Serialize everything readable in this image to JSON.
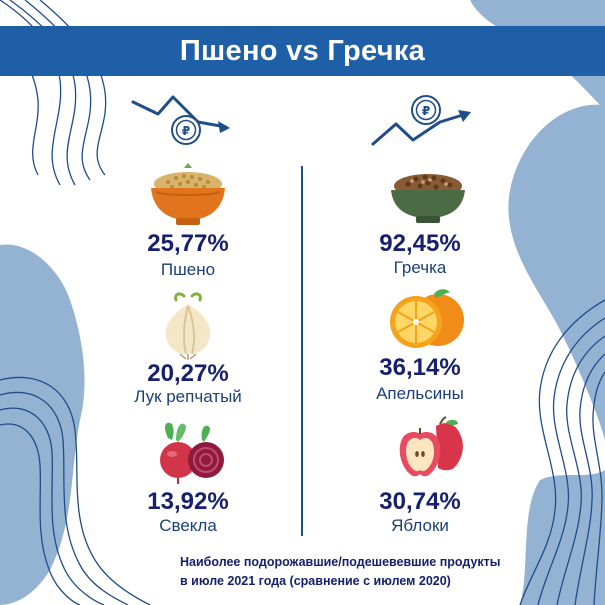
{
  "title": "Пшено vs Гречка",
  "left": {
    "trend": "down-trend-ruble-icon",
    "items": [
      {
        "percent": "25,77%",
        "name": "Пшено",
        "icon": "millet-bowl-icon"
      },
      {
        "percent": "20,27%",
        "name": "Лук репчатый",
        "icon": "onion-icon"
      },
      {
        "percent": "13,92%",
        "name": "Свекла",
        "icon": "beet-icon"
      }
    ]
  },
  "right": {
    "trend": "up-trend-ruble-icon",
    "items": [
      {
        "percent": "92,45%",
        "name": "Гречка",
        "icon": "buckwheat-bowl-icon"
      },
      {
        "percent": "36,14%",
        "name": "Апельсины",
        "icon": "orange-icon"
      },
      {
        "percent": "30,74%",
        "name": "Яблоки",
        "icon": "apple-icon"
      }
    ]
  },
  "footnote": {
    "line1": "Наиболее подорожавшие/подешевевшие продукты",
    "line2": "в июле 2021 года (сравнение с июлем 2020)"
  },
  "colors": {
    "banner": "#1f5fa8",
    "accent_text": "#16206e",
    "name_text": "#1b3f7a",
    "blob": "#94b3d2"
  }
}
